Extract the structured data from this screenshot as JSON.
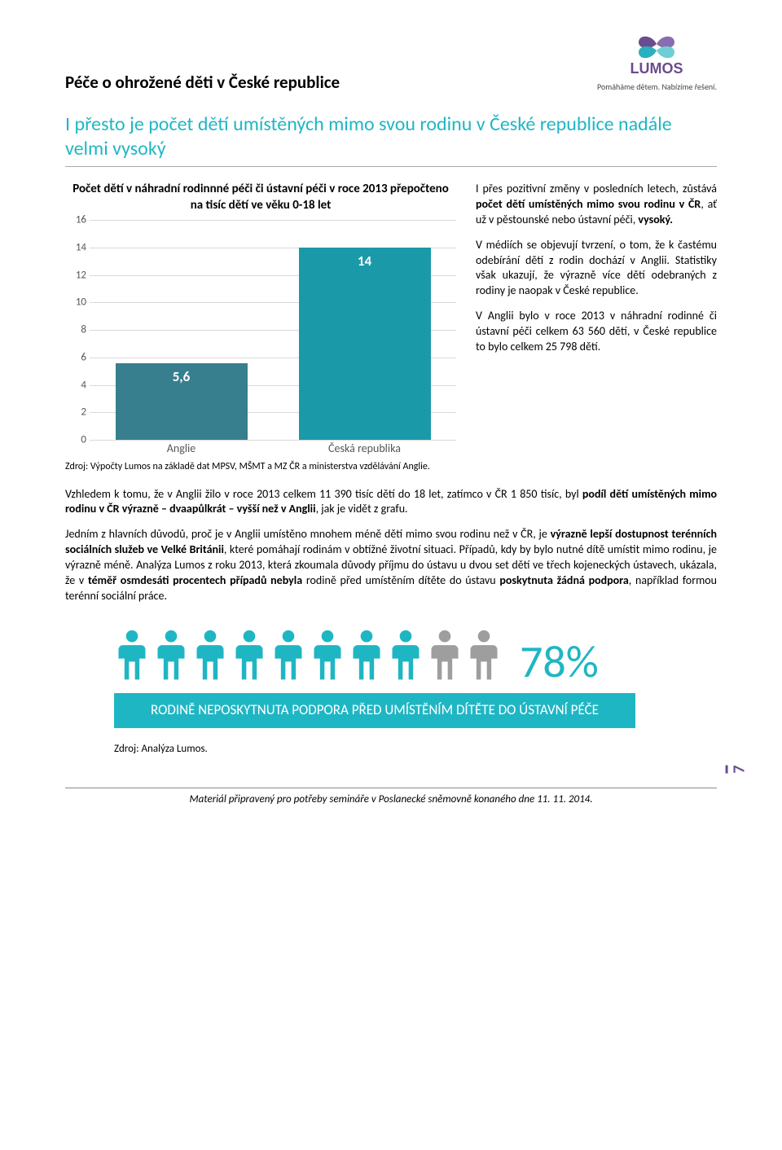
{
  "logo": {
    "name": "LUMOS",
    "tagline": "Pomáháme dětem. Nabízíme řešení.",
    "purple": "#6a4c8f",
    "teal": "#2bb0bf"
  },
  "doc_title": "Péče o ohrožené děti v České republice",
  "subheading": "I přesto je počet dětí umístěných mimo svou rodinu v České republice nadále velmi vysoký",
  "chart": {
    "type": "bar",
    "title": "Počet dětí v náhradní rodinnné péči či ústavní péči v roce 2013 přepočteno na tisíc dětí ve věku 0-18 let",
    "categories": [
      "Anglie",
      "Česká republika"
    ],
    "values": [
      5.6,
      14
    ],
    "value_labels": [
      "5,6",
      "14"
    ],
    "bar_colors": [
      "#377f8e",
      "#1a9aa8"
    ],
    "ylim": [
      0,
      16
    ],
    "yticks": [
      0,
      2,
      4,
      6,
      8,
      10,
      12,
      14,
      16
    ],
    "grid_color": "#d9d9d9",
    "bg": "#ffffff",
    "source": "Zdroj: Výpočty Lumos na základě dat MPSV, MŠMT a MZ ČR a ministerstva vzdělávání Anglie."
  },
  "side_paragraphs": {
    "p1_a": "I přes pozitivní změny v posledních letech, zůstává ",
    "p1_b": "počet dětí umístěných mimo svou rodinu v ČR",
    "p1_c": ", ať už v pěstounské nebo ústavní péči, ",
    "p1_d": "vysoký.",
    "p2": "V médiích se objevují tvrzení, o tom, že k častému odebírání dětí z rodin dochází v Anglii. Statistiky však ukazují, že výrazně více dětí odebraných z rodiny je naopak v České republice.",
    "p3": "V Anglii bylo v roce 2013 v náhradní rodinné či ústavní péči celkem 63 560 dětí, v České republice to bylo celkem 25 798 dětí."
  },
  "body": {
    "p1_a": "Vzhledem k tomu, že v Anglii žilo v roce 2013 celkem 11 390 tisíc dětí do 18 let, zatímco v ČR 1 850 tisíc, byl ",
    "p1_b": "podíl dětí umístěných mimo rodinu v ČR výrazně – dvaapůlkrát – vyšší než v Anglii",
    "p1_c": ", jak je vidět z  grafu.",
    "p2_a": "Jedním z hlavních důvodů, proč je v Anglii umístěno mnohem méně dětí mimo svou rodinu než v ČR, je ",
    "p2_b": "výrazně lepší dostupnost terénních sociálních služeb ve Velké Británii",
    "p2_c": ", které pomáhají rodinám v obtížné životní situaci. Případů, kdy by bylo nutné dítě umístit mimo rodinu, je výrazně méně. Analýza Lumos z roku 2013, která zkoumala důvody příjmu do ústavu u dvou set dětí ve třech kojeneckých ústavech, ukázala, že v ",
    "p2_d": "téměř osmdesáti procentech případů nebyla",
    "p2_e": " rodině před umístěním dítěte do ústavu ",
    "p2_f": "poskytnuta žádná podpora",
    "p2_g": ", například formou terénní sociální práce."
  },
  "infographic": {
    "type": "infographic",
    "people_total": 10,
    "people_highlighted": 8,
    "color_on": "#1fb6c4",
    "color_off": "#9e9e9e",
    "percent_label": "78%",
    "banner": "RODINĚ NEPOSKYTNUTA PODPORA PŘED UMÍSTĚNÍM DÍTĚTE DO ÚSTAVNÍ PÉČE",
    "source": "Zdroj: Analýza Lumos."
  },
  "page_number": "7",
  "footer": "Materiál připravený pro potřeby semináře v Poslanecké sněmovně konaného dne 11. 11. 2014."
}
